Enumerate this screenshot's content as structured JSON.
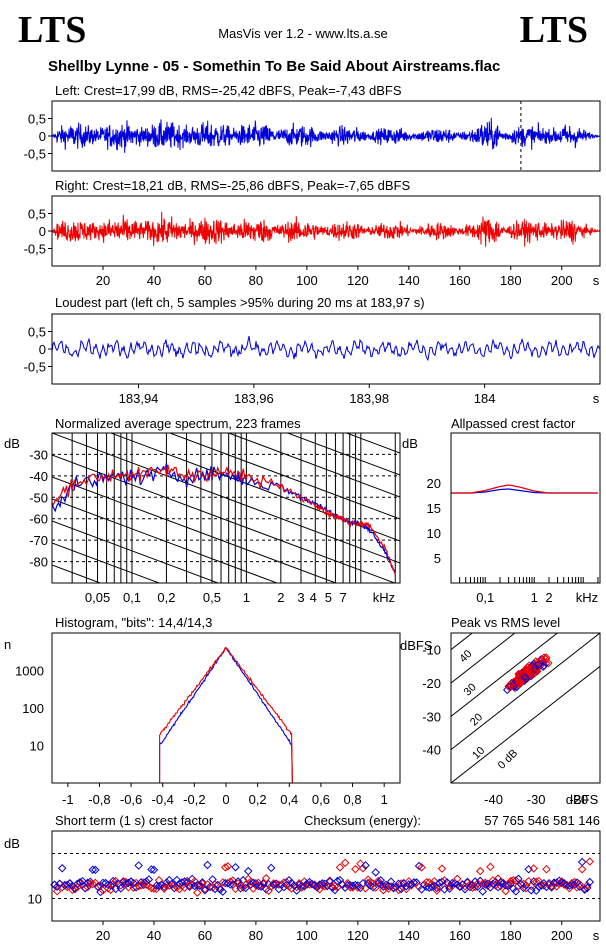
{
  "brand": {
    "left": "LTS",
    "right": "LTS"
  },
  "app": {
    "version": "MasVis ver 1.2 - www.lts.a.se"
  },
  "track": {
    "title": "Shellby Lynne - 05 - Somethin To Be Said About Airstreams.flac"
  },
  "colors": {
    "left": "#0000dd",
    "right": "#ee0000",
    "frame": "#000000"
  },
  "chart_data": [
    {
      "id": "left",
      "type": "line",
      "title": "Left: Crest=17,99 dB, RMS=-25,42 dBFS, Peak=-7,43 dBFS",
      "ylim": [
        -1,
        1
      ],
      "yticks": [
        "0,5",
        "0",
        "-0,5"
      ],
      "xlim": [
        0,
        215
      ],
      "marker_x": 183.97,
      "series": [
        {
          "color": "#0000dd"
        }
      ]
    },
    {
      "id": "right",
      "type": "line",
      "title": "Right: Crest=18,21 dB, RMS=-25,86 dBFS, Peak=-7,65 dBFS",
      "ylim": [
        -1,
        1
      ],
      "yticks": [
        "0,5",
        "0",
        "-0,5"
      ],
      "xlim": [
        0,
        215
      ],
      "xticks": [
        20,
        40,
        60,
        80,
        100,
        120,
        140,
        160,
        180,
        200
      ],
      "xunit": "s",
      "series": [
        {
          "color": "#ee0000"
        }
      ]
    },
    {
      "id": "loudest",
      "type": "line",
      "title": "Loudest part (left  ch, 5 samples >95% during 20 ms at 183,97 s)",
      "ylim": [
        -1,
        1
      ],
      "yticks": [
        "0,5",
        "0",
        "-0,5"
      ],
      "xlim": [
        183.925,
        184.02
      ],
      "xticks": [
        "183,94",
        "183,96",
        "183,98",
        "184"
      ],
      "xunit": "s",
      "series": [
        {
          "color": "#0000dd"
        }
      ]
    },
    {
      "id": "spectrum",
      "type": "line",
      "title": "Normalized average spectrum, 223 frames",
      "ylabel": "dB",
      "yticks": [
        "-30",
        "-40",
        "-50",
        "-60",
        "-70",
        "-80"
      ],
      "ylim": [
        -90,
        -20
      ],
      "xticks": [
        "0,05",
        "0,1",
        "0,2",
        "0,5",
        "1",
        "2",
        "3",
        "4",
        "5",
        "7"
      ],
      "xunit": "kHz",
      "xlim_khz": [
        0.02,
        22
      ],
      "series": [
        {
          "color": "#0000dd",
          "x_khz": [
            0.02,
            0.03,
            0.05,
            0.08,
            0.12,
            0.2,
            0.3,
            0.5,
            0.8,
            1,
            2,
            3,
            4,
            5,
            6,
            7,
            8,
            10,
            12,
            16,
            20
          ],
          "y_db": [
            -55,
            -45,
            -42,
            -40,
            -41,
            -38,
            -41,
            -39,
            -40,
            -42,
            -45,
            -50,
            -53,
            -56,
            -58,
            -60,
            -62,
            -62,
            -65,
            -75,
            -85
          ]
        },
        {
          "color": "#ee0000",
          "x_khz": [
            0.02,
            0.03,
            0.05,
            0.08,
            0.12,
            0.2,
            0.3,
            0.5,
            0.8,
            1,
            2,
            3,
            4,
            5,
            6,
            7,
            8,
            10,
            12,
            16,
            20
          ],
          "y_db": [
            -54,
            -43,
            -41,
            -39,
            -40,
            -37,
            -40,
            -38,
            -39,
            -41,
            -45,
            -50,
            -53,
            -57,
            -59,
            -60,
            -62,
            -62,
            -63,
            -73,
            -86
          ]
        }
      ]
    },
    {
      "id": "allpass",
      "type": "line",
      "title": "Allpassed crest factor",
      "ylabel": "dB",
      "yticks": [
        "20",
        "15",
        "10",
        "5"
      ],
      "ylim": [
        0,
        30
      ],
      "xticks": [
        "0,1",
        "1",
        "2",
        "kHz"
      ],
      "series": [
        {
          "color": "#0000dd",
          "x_khz": [
            0.02,
            0.05,
            0.1,
            0.2,
            0.3,
            0.5,
            1,
            2,
            5,
            20
          ],
          "y_db": [
            18,
            18,
            18.2,
            18.7,
            18.8,
            18.5,
            18.1,
            18,
            18,
            18
          ]
        },
        {
          "color": "#ee0000",
          "x_khz": [
            0.02,
            0.05,
            0.1,
            0.2,
            0.3,
            0.5,
            1,
            2,
            5,
            20
          ],
          "y_db": [
            18,
            18,
            18.5,
            19.3,
            19.6,
            19.2,
            18.4,
            18,
            18,
            18
          ]
        }
      ]
    },
    {
      "id": "histogram",
      "type": "line",
      "title": "Histogram, \"bits\": 14,4/14,3",
      "ylabel": "n",
      "yticks": [
        "1000",
        "100",
        "10"
      ],
      "xticks": [
        "-1",
        "-0,8",
        "-0,6",
        "-0,4",
        "-0,2",
        "0",
        "0,2",
        "0,4",
        "0,6",
        "0,8",
        "1"
      ],
      "xlim": [
        -1.1,
        1.1
      ]
    },
    {
      "id": "peakrms",
      "type": "scatter",
      "title": "Peak vs RMS level",
      "ylabel": "dBFS",
      "xlabel": "dBFS",
      "yticks": [
        "-10",
        "-20",
        "-30",
        "-40"
      ],
      "xticks": [
        "-40",
        "-30",
        "-20"
      ],
      "diag_labels": [
        "40",
        "30",
        "20",
        "10",
        "0 dB"
      ]
    },
    {
      "id": "shortcrest",
      "type": "scatter",
      "title": "Short term (1 s) crest factor",
      "ylabel": "dB",
      "yticks": [
        "10"
      ],
      "xticks": [
        20,
        40,
        60,
        80,
        100,
        120,
        140,
        160,
        180,
        200
      ],
      "xunit": "s",
      "checksum_label": "Checksum (energy):",
      "checksum_value": "57 765 546 581 146"
    }
  ]
}
